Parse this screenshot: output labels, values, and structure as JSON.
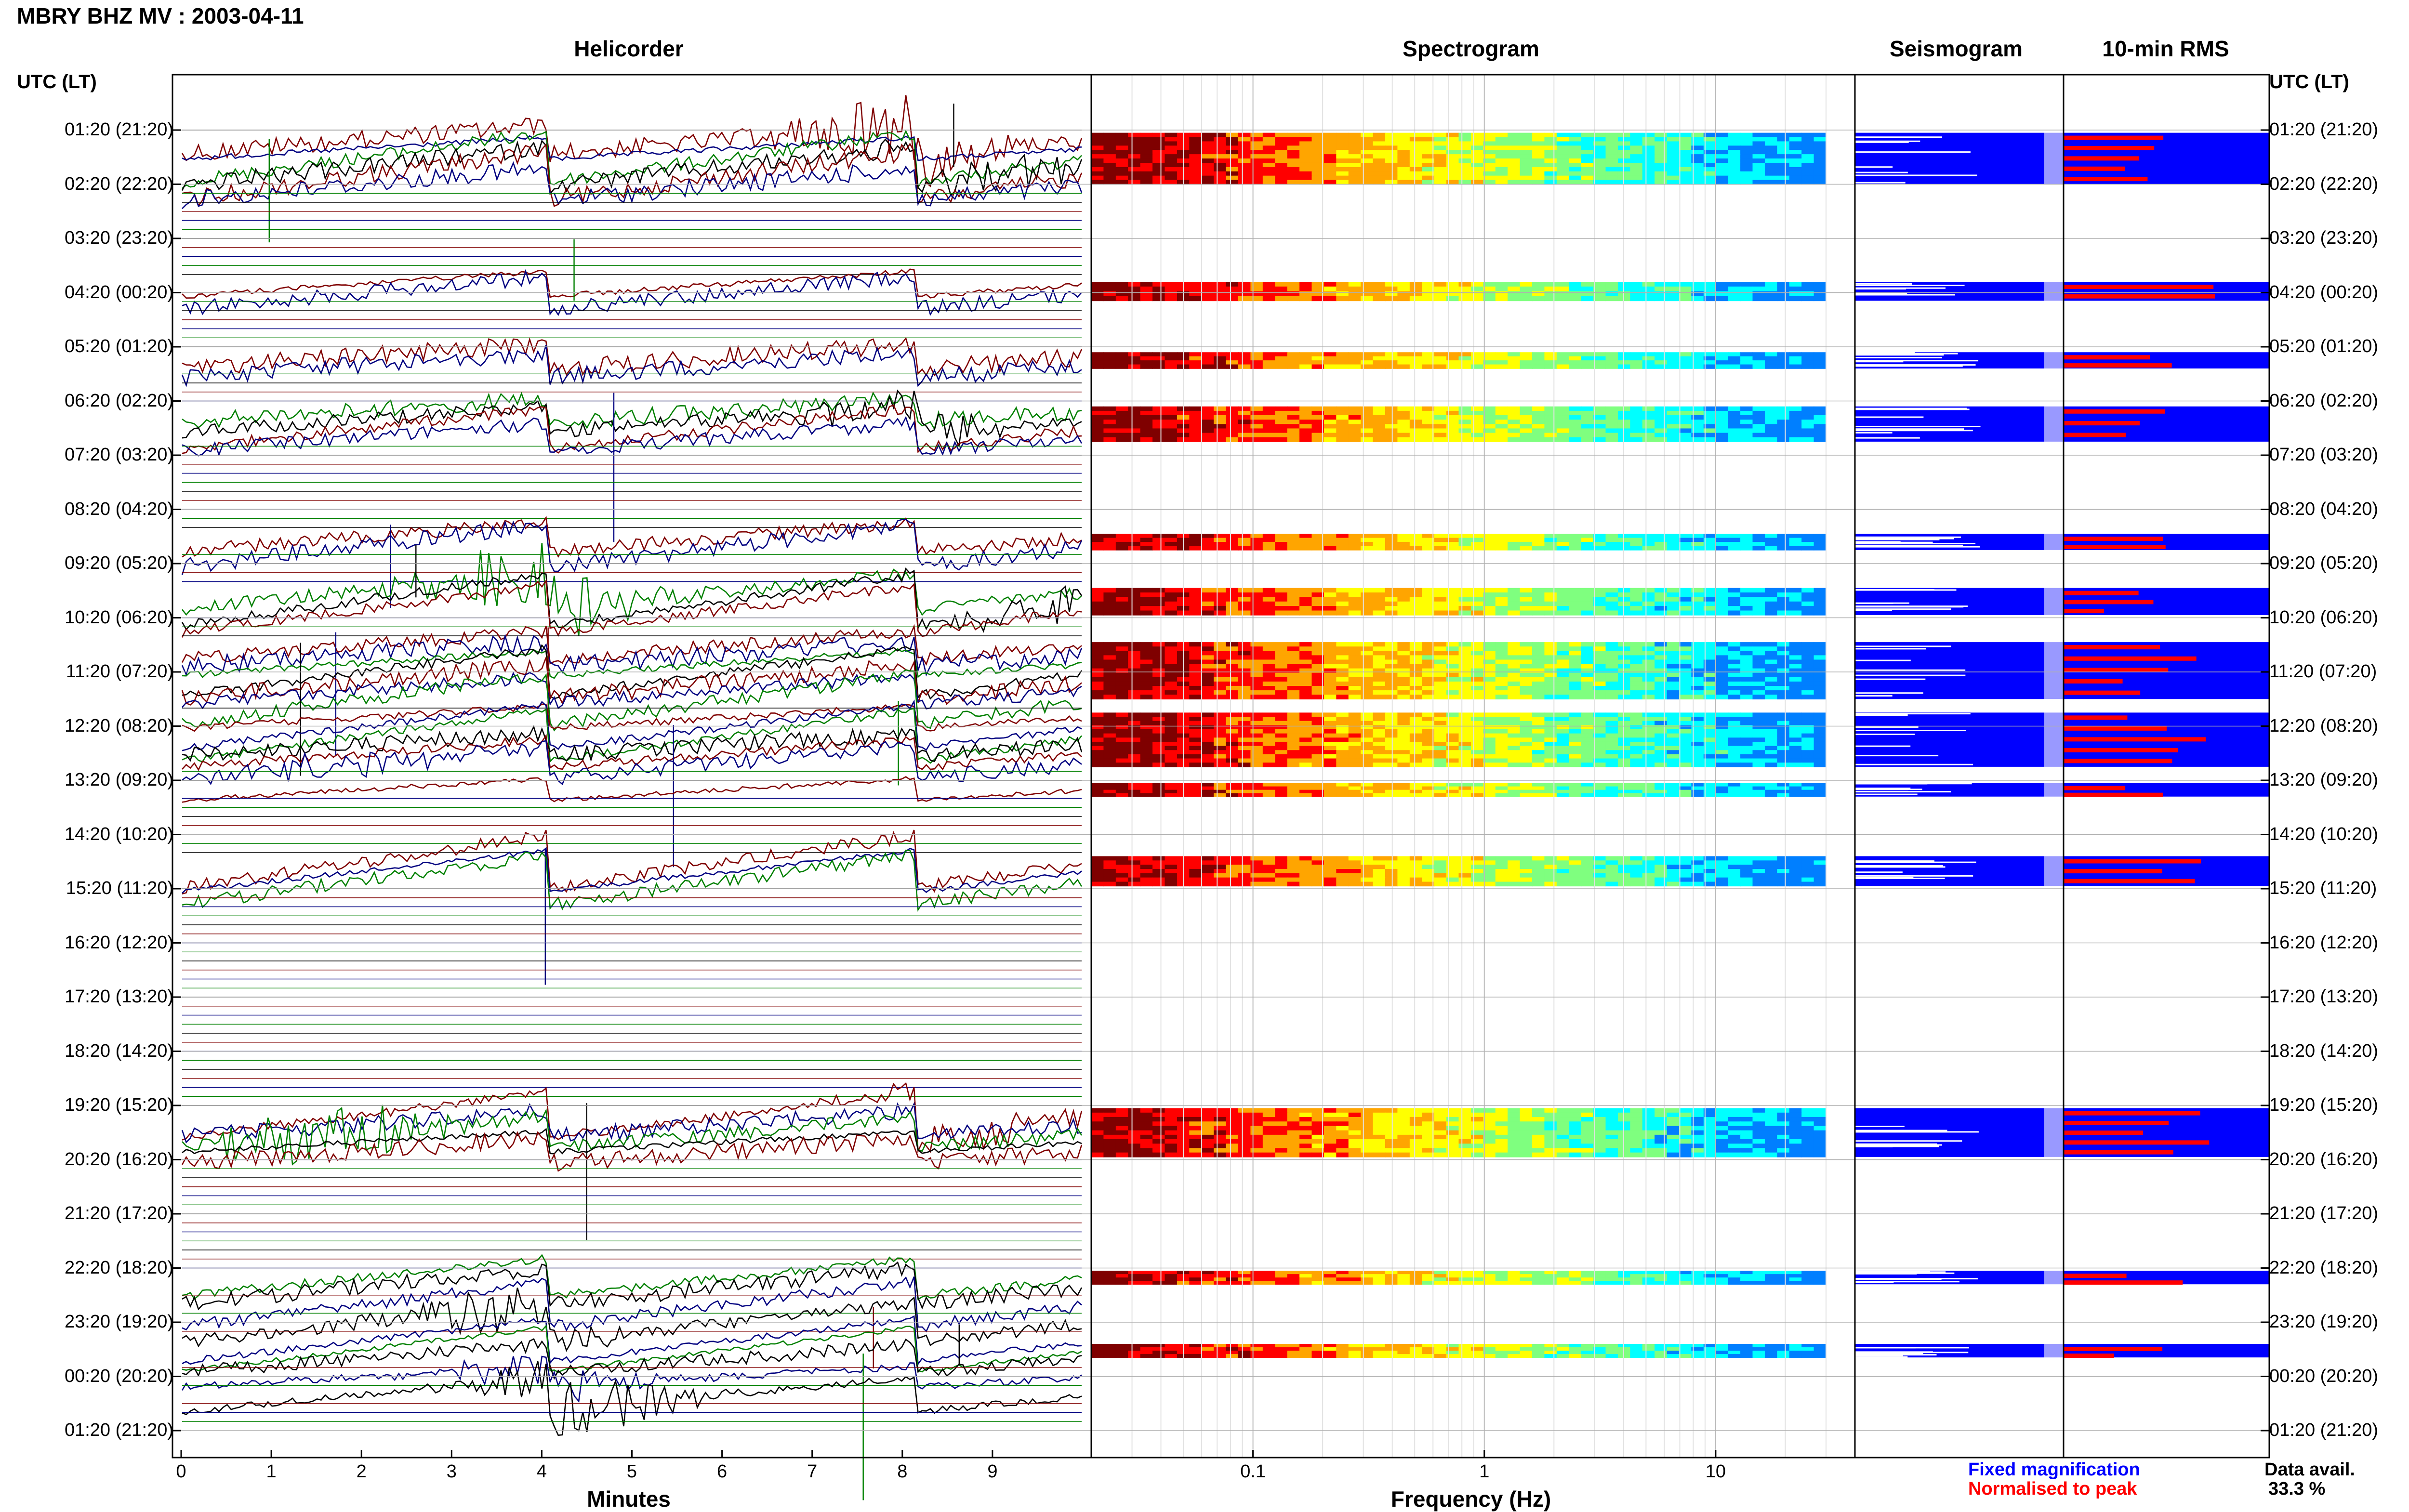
{
  "header": {
    "title": "MBRY BHZ MV : 2003-04-11"
  },
  "panels": {
    "helicorder": "Helicorder",
    "spectrogram": "Spectrogram",
    "seismogram": "Seismogram",
    "rms": "10-min RMS"
  },
  "axis": {
    "time_label_left": "UTC (LT)",
    "time_label_right": "UTC (LT)",
    "minutes_label": "Minutes",
    "frequency_label": "Frequency (Hz)"
  },
  "legend": {
    "fixed": "Fixed magnification",
    "normalised": "Normalised to peak",
    "fixed_color": "#0000ff",
    "normalised_color": "#ff0000",
    "data_avail_label": "Data avail.",
    "data_avail_value": "33.3 %"
  },
  "chart_data": {
    "type": "heatmap",
    "title": "MBRY BHZ MV : 2003-04-11",
    "time_ticks": [
      "01:20 (21:20)",
      "02:20 (22:20)",
      "03:20 (23:20)",
      "04:20 (00:20)",
      "05:20 (01:20)",
      "06:20 (02:20)",
      "07:20 (03:20)",
      "08:20 (04:20)",
      "09:20 (05:20)",
      "10:20 (06:20)",
      "11:20 (07:20)",
      "12:20 (08:20)",
      "13:20 (09:20)",
      "14:20 (10:20)",
      "15:20 (11:20)",
      "16:20 (12:20)",
      "17:20 (13:20)",
      "18:20 (14:20)",
      "19:20 (15:20)",
      "20:20 (16:20)",
      "21:20 (17:20)",
      "22:20 (18:20)",
      "23:20 (19:20)",
      "00:20 (20:20)",
      "01:20 (21:20)"
    ],
    "minutes_ticks": [
      "0",
      "1",
      "2",
      "3",
      "4",
      "5",
      "6",
      "7",
      "8",
      "9"
    ],
    "minutes_range": [
      0,
      10
    ],
    "frequency_ticks": [
      "0.1",
      "1",
      "10"
    ],
    "frequency_range": [
      0.02,
      40
    ],
    "frequency_scale": "log",
    "helicorder_colors": [
      "#000000",
      "#800000",
      "#000080",
      "#008000"
    ],
    "spectrogram_colormap": [
      "#7f0000",
      "#ff0000",
      "#ffa500",
      "#ffff00",
      "#7fff7f",
      "#00ffff",
      "#007fff"
    ],
    "data_segments_hours": [
      [
        0.05,
        1.0
      ],
      [
        2.8,
        3.15
      ],
      [
        4.1,
        4.4
      ],
      [
        5.1,
        5.75
      ],
      [
        7.45,
        7.75
      ],
      [
        8.45,
        8.95
      ],
      [
        9.45,
        10.5
      ],
      [
        10.75,
        11.75
      ],
      [
        12.05,
        12.3
      ],
      [
        13.4,
        13.95
      ],
      [
        18.05,
        18.95
      ],
      [
        21.05,
        21.3
      ],
      [
        22.4,
        22.65
      ]
    ],
    "series": [
      {
        "name": "Fixed magnification",
        "values": [
          0.3,
          0.55,
          0.35,
          0.25,
          0.3,
          0.45,
          0.3,
          0.35,
          0.6,
          0.45,
          0.2,
          0.45,
          0.35
        ]
      },
      {
        "name": "Normalised to peak",
        "values": [
          0.7,
          0.75,
          0.55,
          0.6,
          0.7,
          0.45,
          0.65,
          0.7,
          0.55,
          0.7,
          0.8,
          0.6,
          0.55
        ]
      }
    ]
  }
}
